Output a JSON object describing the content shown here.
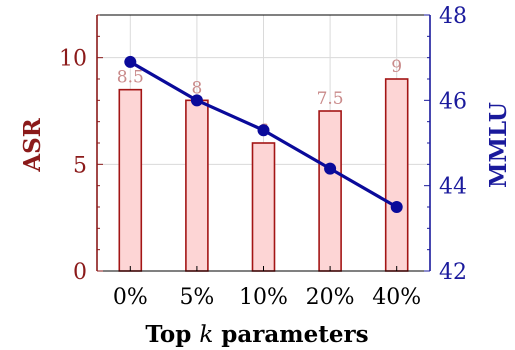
{
  "chart_data": {
    "type": "bar",
    "categories": [
      "0%",
      "5%",
      "10%",
      "20%",
      "40%"
    ],
    "series": [
      {
        "values": [
          8.5,
          8,
          6,
          7.5,
          9
        ],
        "axis": "left",
        "kind": "bar"
      },
      {
        "values": [
          46.9,
          46.0,
          45.3,
          44.4,
          43.5
        ],
        "axis": "right",
        "kind": "line"
      }
    ],
    "bar_labels": [
      "8.5",
      "8",
      "6",
      "7.5",
      "9"
    ],
    "xlabel_prefix": "Top ",
    "xlabel_var": "k",
    "xlabel_suffix": " parameters",
    "ylabel_left": "ASR",
    "ylabel_right": "MMLU",
    "ylim_left": [
      0,
      12
    ],
    "ylim_right": [
      42,
      48
    ],
    "yticks_left": [
      "0",
      "5",
      "10"
    ],
    "yticks_right": [
      "42",
      "44",
      "46",
      "48"
    ],
    "grid": true,
    "colors": {
      "bar_fill": "#fdd5d5",
      "bar_stroke": "#a31515",
      "line": "#0a0a9a",
      "left_axis": "#8b1a1a",
      "right_axis": "#1a1a9c",
      "bar_label": "#c98a8a"
    }
  }
}
